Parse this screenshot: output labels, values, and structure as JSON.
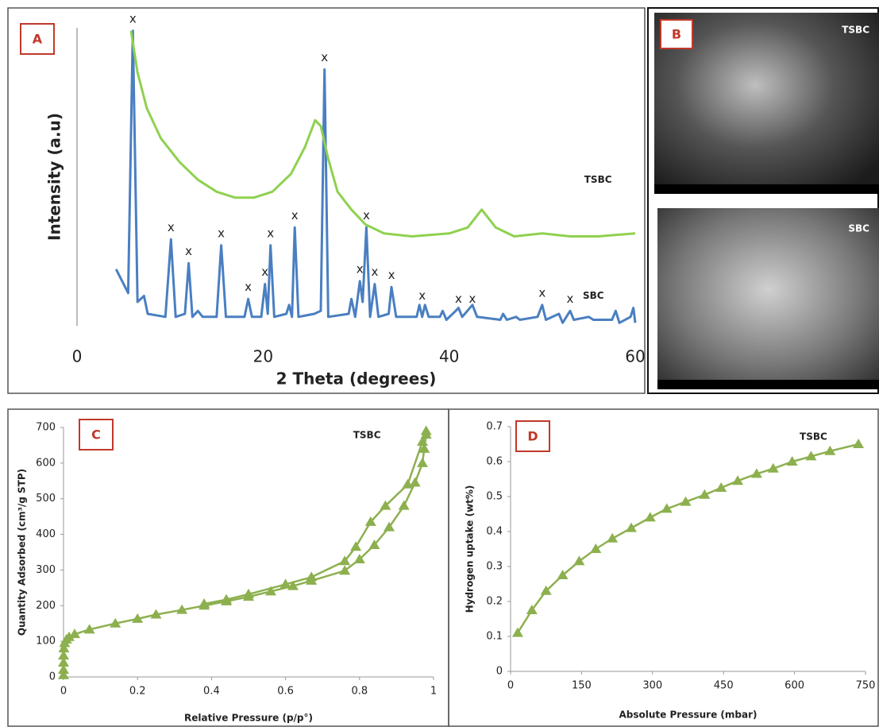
{
  "chart_data": [
    {
      "type": "line",
      "label": "A",
      "xlabel": "2 Theta (degrees)",
      "ylabel": "Intensity (a.u)",
      "xlim": [
        0,
        60
      ],
      "xticks": [
        0,
        20,
        40,
        60
      ],
      "ylim": [
        0,
        100
      ],
      "grid": false,
      "series": [
        {
          "color": "#4a7fc1",
          "x": [
            4.2,
            5.5,
            6.0,
            6.5,
            7.2,
            7.6,
            9.5,
            10.1,
            10.6,
            11.6,
            12.0,
            12.4,
            13.0,
            13.5,
            15.0,
            15.5,
            16.0,
            18.0,
            18.4,
            18.8,
            19.8,
            20.2,
            20.5,
            20.8,
            21.2,
            22.5,
            22.8,
            23.1,
            23.4,
            23.8,
            25.5,
            26.2,
            26.6,
            27.0,
            29.2,
            29.5,
            29.9,
            30.4,
            30.7,
            31.1,
            31.5,
            32.0,
            32.4,
            33.5,
            33.8,
            34.3,
            36.5,
            36.8,
            37.1,
            37.4,
            37.8,
            39.0,
            39.3,
            39.7,
            40.7,
            41.0,
            41.4,
            42.5,
            43.0,
            45.5,
            45.8,
            46.2,
            47.2,
            47.6,
            49.5,
            50.0,
            50.4,
            51.8,
            52.2,
            53.0,
            53.4,
            55.0,
            55.5,
            57.5,
            57.9,
            58.3,
            59.5,
            59.8,
            60
          ],
          "values": [
            19,
            11,
            99,
            8,
            10,
            4,
            3,
            29,
            3,
            4,
            21,
            3,
            5,
            3,
            3,
            27,
            3,
            3,
            9,
            3,
            3,
            14,
            4,
            27,
            3,
            4,
            7,
            3,
            33,
            3,
            4,
            5,
            86,
            3,
            4,
            9,
            3,
            15,
            8,
            33,
            3,
            14,
            3,
            4,
            13,
            3,
            3,
            7,
            3,
            7,
            3,
            3,
            5,
            2,
            5,
            6,
            3,
            7,
            3,
            2,
            4,
            2,
            3,
            2,
            3,
            7,
            2,
            4,
            1,
            5,
            2,
            3,
            2,
            2,
            5,
            1,
            3,
            6,
            1
          ]
        },
        {
          "color": "#8fd14f",
          "x": [
            5.8,
            6.5,
            7.5,
            9,
            11,
            13,
            15,
            17,
            19,
            21,
            23,
            24.5,
            25.6,
            26.2,
            27,
            28,
            29.5,
            31,
            33,
            36,
            40,
            42,
            43.5,
            45,
            47,
            50,
            53,
            56,
            60
          ],
          "values": [
            99,
            85,
            73,
            63,
            55,
            49,
            45,
            43,
            43,
            45,
            51,
            60,
            69,
            67,
            56,
            45,
            39,
            34,
            31,
            30,
            31,
            33,
            39,
            33,
            30,
            31,
            30,
            30,
            31
          ]
        }
      ],
      "annotations": [
        {
          "text": "TSBC",
          "x": 56,
          "y": 49
        },
        {
          "text": "SBC",
          "x": 55.5,
          "y": 10
        },
        {
          "text": "x",
          "x": 6.0,
          "y": 103
        },
        {
          "text": "x",
          "x": 10.1,
          "y": 33
        },
        {
          "text": "x",
          "x": 12.0,
          "y": 25
        },
        {
          "text": "x",
          "x": 15.5,
          "y": 31
        },
        {
          "text": "x",
          "x": 18.4,
          "y": 13
        },
        {
          "text": "x",
          "x": 20.2,
          "y": 18
        },
        {
          "text": "x",
          "x": 20.8,
          "y": 31
        },
        {
          "text": "x",
          "x": 23.4,
          "y": 37
        },
        {
          "text": "x",
          "x": 26.6,
          "y": 90
        },
        {
          "text": "x",
          "x": 30.4,
          "y": 19
        },
        {
          "text": "x",
          "x": 31.1,
          "y": 37
        },
        {
          "text": "x",
          "x": 32.0,
          "y": 18
        },
        {
          "text": "x",
          "x": 33.8,
          "y": 17
        },
        {
          "text": "x",
          "x": 37.1,
          "y": 10
        },
        {
          "text": "x",
          "x": 41.0,
          "y": 9
        },
        {
          "text": "x",
          "x": 42.5,
          "y": 9
        },
        {
          "text": "x",
          "x": 50.0,
          "y": 11
        },
        {
          "text": "x",
          "x": 53.0,
          "y": 9
        }
      ]
    },
    {
      "type": "line",
      "label": "C",
      "marker": "triangle",
      "xlabel": "Relative Pressure (p/p°)",
      "ylabel": "Quantity Adsorbed (cm³/g STP)",
      "xlim": [
        0,
        1
      ],
      "xticks": [
        0,
        0.2,
        0.4,
        0.6,
        0.8,
        1
      ],
      "ylim": [
        0,
        700
      ],
      "yticks": [
        0,
        100,
        200,
        300,
        400,
        500,
        600,
        700
      ],
      "grid": false,
      "series": [
        {
          "color": "#8db04f",
          "x": [
            0,
            0,
            0,
            0,
            0.001,
            0.003,
            0.008,
            0.015,
            0.03,
            0.07,
            0.14,
            0.2,
            0.25,
            0.32,
            0.38,
            0.44,
            0.5,
            0.56,
            0.62,
            0.67,
            0.76,
            0.8,
            0.84,
            0.88,
            0.92,
            0.95,
            0.97,
            0.975,
            0.98
          ],
          "values": [
            5,
            20,
            40,
            60,
            80,
            95,
            105,
            112,
            120,
            133,
            150,
            163,
            175,
            188,
            200,
            212,
            225,
            240,
            255,
            270,
            298,
            330,
            370,
            420,
            480,
            545,
            600,
            640,
            680
          ]
        },
        {
          "color": "#8db04f",
          "x": [
            0.98,
            0.97,
            0.93,
            0.87,
            0.83,
            0.79,
            0.76,
            0.67,
            0.6,
            0.5,
            0.44,
            0.38
          ],
          "values": [
            690,
            660,
            540,
            480,
            435,
            365,
            325,
            280,
            260,
            232,
            217,
            205
          ]
        }
      ],
      "annotations": [
        {
          "text": "TSBC",
          "x": 0.82,
          "y": 678
        }
      ]
    },
    {
      "type": "line",
      "label": "D",
      "marker": "triangle",
      "xlabel": "Absolute Pressure (mbar)",
      "ylabel": "Hydrogen uptake (wt%)",
      "xlim": [
        0,
        750
      ],
      "xticks": [
        0,
        150,
        300,
        450,
        600,
        750
      ],
      "ylim": [
        0,
        0.7
      ],
      "yticks": [
        0,
        0.1,
        0.2,
        0.3,
        0.4,
        0.5,
        0.6,
        0.7
      ],
      "grid": false,
      "series": [
        {
          "color": "#8db04f",
          "x": [
            15,
            45,
            75,
            110,
            145,
            180,
            215,
            255,
            295,
            330,
            370,
            410,
            445,
            480,
            520,
            555,
            595,
            635,
            675,
            735
          ],
          "values": [
            0.11,
            0.175,
            0.23,
            0.275,
            0.315,
            0.35,
            0.38,
            0.41,
            0.44,
            0.465,
            0.485,
            0.505,
            0.525,
            0.545,
            0.565,
            0.58,
            0.6,
            0.615,
            0.63,
            0.65
          ]
        }
      ],
      "annotations": [
        {
          "text": "TSBC",
          "x": 640,
          "y": 0.67
        }
      ]
    }
  ],
  "panel_b": {
    "label": "B",
    "images": [
      {
        "label": "TSBC"
      },
      {
        "label": "SBC"
      }
    ]
  }
}
